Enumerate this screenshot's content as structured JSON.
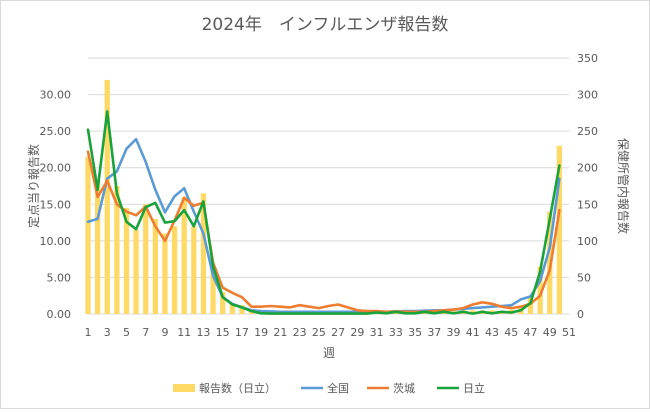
{
  "chart_data": {
    "type": "bar+line",
    "title": "2024年　インフルエンザ報告数",
    "xlabel": "週",
    "ylabel": "定点当り報告数",
    "y2label": "保健所管内報告数",
    "x": [
      1,
      2,
      3,
      4,
      5,
      6,
      7,
      8,
      9,
      10,
      11,
      12,
      13,
      14,
      15,
      16,
      17,
      18,
      19,
      20,
      21,
      22,
      23,
      24,
      25,
      26,
      27,
      28,
      29,
      30,
      31,
      32,
      33,
      34,
      35,
      36,
      37,
      38,
      39,
      40,
      41,
      42,
      43,
      44,
      45,
      46,
      47,
      48,
      49,
      50
    ],
    "xticks": [
      1,
      3,
      5,
      7,
      9,
      11,
      13,
      15,
      17,
      19,
      21,
      23,
      25,
      27,
      29,
      31,
      33,
      35,
      37,
      39,
      41,
      43,
      45,
      47,
      49,
      51
    ],
    "xlim": [
      1,
      51
    ],
    "ylim": [
      0,
      35
    ],
    "yticks": [
      "0.00",
      "5.00",
      "10.00",
      "15.00",
      "20.00",
      "25.00",
      "30.00"
    ],
    "y2lim": [
      0,
      350
    ],
    "y2ticks": [
      "0",
      "50",
      "100",
      "150",
      "200",
      "250",
      "300",
      "350"
    ],
    "grid": "horizontal",
    "legend": "bottom",
    "colors": {
      "bar": "#ffd966",
      "national": "#5b9bd5",
      "ibaraki": "#ed7d31",
      "hitachi": "#1aa33a",
      "grid": "#d9d9d9",
      "axis_text": "#595959"
    },
    "bars": {
      "name": "報告数（日立）",
      "axis": "right",
      "values": [
        215,
        180,
        320,
        175,
        145,
        115,
        150,
        130,
        110,
        120,
        160,
        120,
        165,
        65,
        30,
        15,
        12,
        5,
        3,
        2,
        2,
        2,
        2,
        2,
        2,
        2,
        2,
        2,
        2,
        2,
        3,
        2,
        3,
        2,
        2,
        2,
        3,
        3,
        4,
        5,
        5,
        5,
        5,
        3,
        6,
        8,
        25,
        65,
        140,
        230
      ]
    },
    "series": [
      {
        "name": "全国",
        "axis": "left",
        "values": [
          12.6,
          13.0,
          18.5,
          19.5,
          22.6,
          23.9,
          20.8,
          17.0,
          13.9,
          16.1,
          17.2,
          14.0,
          11.0,
          5.2,
          2.3,
          1.4,
          0.9,
          0.5,
          0.4,
          0.35,
          0.3,
          0.3,
          0.3,
          0.3,
          0.3,
          0.3,
          0.3,
          0.3,
          0.3,
          0.3,
          0.3,
          0.3,
          0.35,
          0.4,
          0.4,
          0.45,
          0.5,
          0.5,
          0.6,
          0.7,
          0.8,
          0.9,
          1.0,
          1.1,
          1.2,
          2.0,
          2.4,
          4.5,
          9.1,
          18.5
        ]
      },
      {
        "name": "茨城",
        "axis": "left",
        "values": [
          22.2,
          16.0,
          18.2,
          15.0,
          14.0,
          13.5,
          14.7,
          12.0,
          10.0,
          12.8,
          15.9,
          14.8,
          15.2,
          7.0,
          3.6,
          2.9,
          2.3,
          1.0,
          1.0,
          1.1,
          1.0,
          0.9,
          1.2,
          1.0,
          0.8,
          1.1,
          1.3,
          0.9,
          0.5,
          0.4,
          0.4,
          0.3,
          0.35,
          0.3,
          0.3,
          0.3,
          0.4,
          0.5,
          0.6,
          0.8,
          1.3,
          1.6,
          1.4,
          1.0,
          0.8,
          1.0,
          1.4,
          2.5,
          6.0,
          14.2
        ]
      },
      {
        "name": "日立",
        "axis": "left",
        "values": [
          25.2,
          17.0,
          27.7,
          16.5,
          12.6,
          11.6,
          14.6,
          15.2,
          12.5,
          12.7,
          14.2,
          12.0,
          15.4,
          6.5,
          2.3,
          1.3,
          0.9,
          0.4,
          0.1,
          0.05,
          0.05,
          0.05,
          0.05,
          0.05,
          0.05,
          0.05,
          0.05,
          0.05,
          0.05,
          0.05,
          0.2,
          0.1,
          0.3,
          0.1,
          0.1,
          0.3,
          0.1,
          0.3,
          0.1,
          0.3,
          0.05,
          0.3,
          0.1,
          0.3,
          0.2,
          0.5,
          1.5,
          5.8,
          13.0,
          20.3
        ]
      }
    ]
  }
}
